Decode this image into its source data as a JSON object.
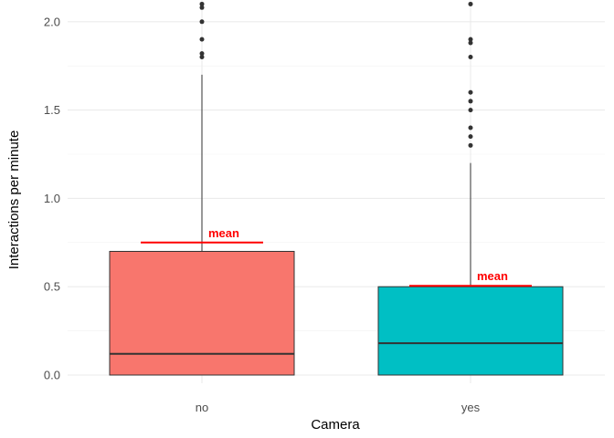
{
  "chart_data": {
    "type": "box",
    "xlabel": "Camera",
    "ylabel": "Interactions per minute",
    "ylim": [
      0,
      2.1
    ],
    "yticks": [
      "0.0",
      "0.5",
      "1.0",
      "1.5",
      "2.0"
    ],
    "categories": [
      "no",
      "yes"
    ],
    "grid": true,
    "boxes": [
      {
        "category": "no",
        "color": "#F8766D",
        "min": 0.0,
        "q1": 0.0,
        "median": 0.12,
        "q3": 0.7,
        "whisker_high": 1.7,
        "mean": 0.75,
        "mean_label": "mean",
        "outliers": [
          1.8,
          1.82,
          1.9,
          2.0,
          2.08,
          2.1
        ]
      },
      {
        "category": "yes",
        "color": "#00BFC4",
        "min": 0.0,
        "q1": 0.0,
        "median": 0.18,
        "q3": 0.5,
        "whisker_high": 1.2,
        "mean": 0.505,
        "mean_label": "mean",
        "outliers": [
          1.3,
          1.35,
          1.4,
          1.5,
          1.55,
          1.6,
          1.8,
          1.88,
          1.9,
          2.1
        ]
      }
    ],
    "mean_color": "#FF0000"
  }
}
